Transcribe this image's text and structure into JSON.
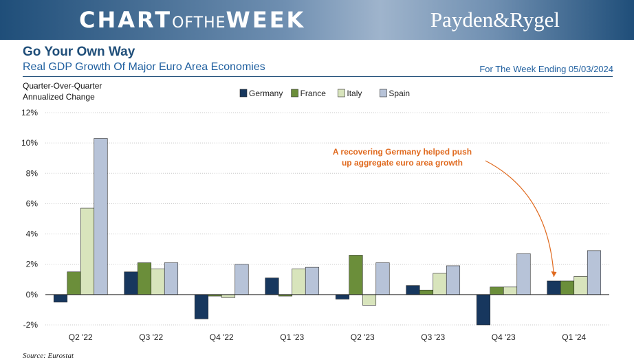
{
  "banner": {
    "chart_word": "CHART",
    "of_the_word": "OFTHE",
    "week_word": "WEEK",
    "brand": "Payden&Rygel"
  },
  "header": {
    "title": "Go Your Own Way",
    "subtitle": "Real GDP Growth Of Major Euro Area Economies",
    "date_note": "For The Week Ending 05/03/2024"
  },
  "footer": {
    "source": "Source: Eurostat"
  },
  "colors": {
    "brand_navy": "#1f4e79",
    "annotation": "#e06a1f"
  },
  "chart_data": {
    "type": "bar",
    "title": "Go Your Own Way",
    "subtitle": "Real GDP Growth Of Major Euro Area Economies",
    "ylabel_lines": [
      "Quarter-Over-Quarter",
      "Annualized Change"
    ],
    "categories": [
      "Q2 '22",
      "Q3 '22",
      "Q4 '22",
      "Q1 '23",
      "Q2 '23",
      "Q3 '23",
      "Q4 '23",
      "Q1 '24"
    ],
    "series": [
      {
        "name": "Germany",
        "color": "#17375e",
        "values": [
          -0.5,
          1.5,
          -1.6,
          1.1,
          -0.3,
          0.6,
          -2.0,
          0.9
        ]
      },
      {
        "name": "France",
        "color": "#6b8e3a",
        "values": [
          1.5,
          2.1,
          -0.1,
          -0.1,
          2.6,
          0.3,
          0.5,
          0.9
        ]
      },
      {
        "name": "Italy",
        "color": "#d8e4bc",
        "values": [
          5.7,
          1.7,
          -0.2,
          1.7,
          -0.7,
          1.4,
          0.5,
          1.2
        ]
      },
      {
        "name": "Spain",
        "color": "#b7c3d8",
        "values": [
          10.3,
          2.1,
          2.0,
          1.8,
          2.1,
          1.9,
          2.7,
          2.9
        ]
      }
    ],
    "ylim": [
      -2,
      12
    ],
    "yticks": [
      -2,
      0,
      2,
      4,
      6,
      8,
      10,
      12
    ],
    "ytick_labels": [
      "-2%",
      "0%",
      "2%",
      "4%",
      "6%",
      "8%",
      "10%",
      "12%"
    ],
    "grid": "horizontal dotted",
    "legend_position": "top-center",
    "annotation": {
      "lines": [
        "A recovering Germany helped push",
        "up aggregate euro area growth"
      ],
      "points_to": "Germany Q1 '24"
    }
  }
}
